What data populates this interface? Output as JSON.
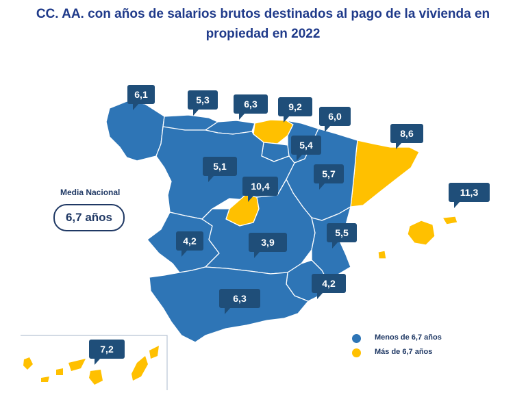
{
  "title": {
    "line1": "CC. AA. con años de salarios brutos destinados al pago de la vivienda en",
    "line2": "propiedad en 2022"
  },
  "media": {
    "label": "Media Nacional",
    "value": "6,7 años"
  },
  "legend": [
    {
      "label": "Menos de 6,7 años",
      "color": "#2e75b6"
    },
    {
      "label": "Más de 6,7 años",
      "color": "#ffc000"
    }
  ],
  "colors": {
    "below": "#2e75b6",
    "above": "#ffc000",
    "callout": "#1f4e79",
    "title": "#1f3a8a"
  },
  "regions": [
    {
      "id": "galicia",
      "value": "6,1",
      "category": "below"
    },
    {
      "id": "asturias",
      "value": "5,3",
      "category": "below"
    },
    {
      "id": "cantabria",
      "value": "6,3",
      "category": "below"
    },
    {
      "id": "pais-vasco",
      "value": "9,2",
      "category": "above"
    },
    {
      "id": "navarra",
      "value": "6,0",
      "category": "below"
    },
    {
      "id": "cataluna",
      "value": "8,6",
      "category": "above"
    },
    {
      "id": "la-rioja",
      "value": "5,4",
      "category": "below"
    },
    {
      "id": "castilla-y-leon",
      "value": "5,1",
      "category": "below"
    },
    {
      "id": "aragon",
      "value": "5,7",
      "category": "below"
    },
    {
      "id": "madrid",
      "value": "10,4",
      "category": "above"
    },
    {
      "id": "baleares",
      "value": "11,3",
      "category": "above"
    },
    {
      "id": "extremadura",
      "value": "4,2",
      "category": "below"
    },
    {
      "id": "castilla-la-mancha",
      "value": "3,9",
      "category": "below"
    },
    {
      "id": "comunidad-valenciana",
      "value": "5,5",
      "category": "below"
    },
    {
      "id": "murcia",
      "value": "4,2",
      "category": "below"
    },
    {
      "id": "andalucia",
      "value": "6,3",
      "category": "below"
    },
    {
      "id": "canarias",
      "value": "7,2",
      "category": "above"
    }
  ]
}
